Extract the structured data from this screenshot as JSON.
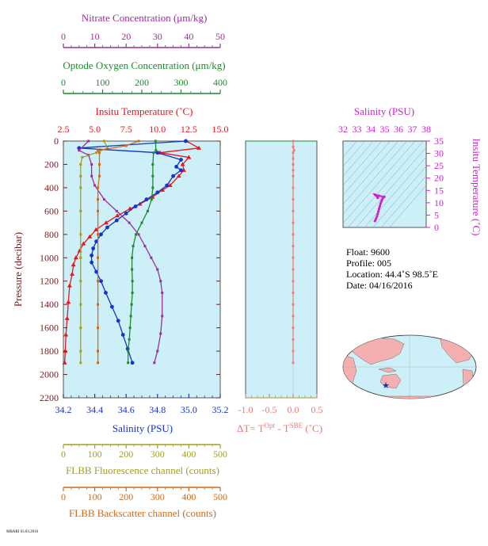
{
  "colors": {
    "nitrate": "#9b2f9b",
    "oxygen": "#1e8a2e",
    "temperature": "#e8151b",
    "salinity": "#1433c8",
    "fluorescence": "#a0a020",
    "backscatter": "#d06a18",
    "dt": "#f07878",
    "magenta": "#d020d0",
    "plot_bg": "#cdeff7"
  },
  "axes": {
    "nitrate": {
      "label": "Nitrate Concentration (μm/kg)",
      "ticks": [
        "0",
        "10",
        "20",
        "30",
        "40",
        "50"
      ]
    },
    "oxygen": {
      "label": "Optode Oxygen Concentration (μm/kg)",
      "ticks": [
        "0",
        "100",
        "200",
        "300",
        "400"
      ]
    },
    "temperature": {
      "label": "Insitu Temperature (˚C)",
      "ticks": [
        "2.5",
        "5.0",
        "7.5",
        "10.0",
        "12.5",
        "15.0"
      ]
    },
    "salinity": {
      "label": "Salinity (PSU)",
      "ticks": [
        "34.2",
        "34.4",
        "34.6",
        "34.8",
        "35.0",
        "35.2"
      ]
    },
    "pressure": {
      "label": "Pressure (decibar)",
      "ticks": [
        "0",
        "200",
        "400",
        "600",
        "800",
        "1000",
        "1200",
        "1400",
        "1600",
        "1800",
        "2000",
        "2200"
      ]
    },
    "fluorescence": {
      "label": "FLBB Fluorescence channel (counts)",
      "ticks": [
        "0",
        "100",
        "200",
        "300",
        "400",
        "500"
      ]
    },
    "backscatter": {
      "label": "FLBB Backscatter channel (counts)",
      "ticks": [
        "0",
        "100",
        "200",
        "300",
        "400",
        "500"
      ]
    },
    "dt": {
      "label_main": "ΔT= T",
      "sup1": "Opt",
      "label_mid": " - T",
      "sup2": "SBE",
      "label_end": " (˚C)",
      "ticks": [
        "-1.0",
        "-0.5",
        "0.0",
        "0.5"
      ]
    },
    "ts_salinity": {
      "label": "Salinity (PSU)",
      "ticks": [
        "32",
        "33",
        "34",
        "35",
        "36",
        "37",
        "38"
      ]
    },
    "ts_temperature": {
      "label": "Insitu Temperature (˚C)",
      "ticks": [
        "0",
        "5",
        "10",
        "15",
        "20",
        "25",
        "30",
        "35"
      ]
    }
  },
  "info": {
    "float": "Float:  9600",
    "profile": "Profile:  005",
    "location": "Location:  44.4˚S  98.5˚E",
    "date": "Date:  04/16/2016"
  },
  "footer": "MBARI 03.03.2016",
  "chart_data": [
    {
      "type": "line",
      "name": "profile-main",
      "y_label": "Pressure (decibar)",
      "ylim": [
        2200,
        0
      ],
      "series": [
        {
          "name": "Insitu Temperature",
          "unit": "˚C",
          "xlim": [
            2.5,
            15.0
          ],
          "points": [
            [
              12.3,
              0
            ],
            [
              13.3,
              60
            ],
            [
              10.2,
              100
            ],
            [
              12.5,
              140
            ],
            [
              12.0,
              200
            ],
            [
              12.1,
              250
            ],
            [
              11.7,
              300
            ],
            [
              11.0,
              380
            ],
            [
              10.4,
              420
            ],
            [
              9.6,
              480
            ],
            [
              8.6,
              540
            ],
            [
              7.8,
              580
            ],
            [
              6.8,
              640
            ],
            [
              5.9,
              700
            ],
            [
              5.1,
              760
            ],
            [
              4.6,
              820
            ],
            [
              4.1,
              880
            ],
            [
              3.8,
              940
            ],
            [
              3.5,
              1000
            ],
            [
              3.3,
              1060
            ],
            [
              3.2,
              1140
            ],
            [
              3.0,
              1240
            ],
            [
              2.9,
              1380
            ],
            [
              2.8,
              1520
            ],
            [
              2.7,
              1660
            ],
            [
              2.65,
              1800
            ],
            [
              2.6,
              1900
            ]
          ]
        },
        {
          "name": "Salinity",
          "unit": "PSU",
          "xlim": [
            34.2,
            35.2
          ],
          "points": [
            [
              34.98,
              0
            ],
            [
              34.3,
              60
            ],
            [
              34.8,
              100
            ],
            [
              34.95,
              160
            ],
            [
              34.92,
              220
            ],
            [
              34.95,
              250
            ],
            [
              34.9,
              300
            ],
            [
              34.86,
              380
            ],
            [
              34.8,
              440
            ],
            [
              34.73,
              500
            ],
            [
              34.66,
              560
            ],
            [
              34.6,
              620
            ],
            [
              34.54,
              680
            ],
            [
              34.48,
              740
            ],
            [
              34.44,
              800
            ],
            [
              34.41,
              860
            ],
            [
              34.39,
              920
            ],
            [
              34.38,
              980
            ],
            [
              34.38,
              1040
            ],
            [
              34.41,
              1120
            ],
            [
              34.44,
              1200
            ],
            [
              34.47,
              1300
            ],
            [
              34.51,
              1420
            ],
            [
              34.55,
              1540
            ],
            [
              34.58,
              1660
            ],
            [
              34.61,
              1780
            ],
            [
              34.64,
              1900
            ]
          ]
        },
        {
          "name": "Nitrate Concentration",
          "unit": "μm/kg",
          "xlim": [
            0,
            50
          ],
          "points": [
            [
              8,
              0
            ],
            [
              5,
              80
            ],
            [
              8,
              120
            ],
            [
              9,
              200
            ],
            [
              9,
              300
            ],
            [
              10,
              380
            ],
            [
              13,
              500
            ],
            [
              17,
              600
            ],
            [
              21,
              700
            ],
            [
              24,
              800
            ],
            [
              26,
              900
            ],
            [
              28,
              1000
            ],
            [
              30,
              1100
            ],
            [
              31,
              1200
            ],
            [
              31.5,
              1300
            ],
            [
              31.5,
              1500
            ],
            [
              31,
              1650
            ],
            [
              30,
              1800
            ],
            [
              29,
              1900
            ]
          ]
        },
        {
          "name": "Optode Oxygen Concentration",
          "unit": "μm/kg",
          "xlim": [
            0,
            400
          ],
          "points": [
            [
              235,
              0
            ],
            [
              236,
              80
            ],
            [
              230,
              100
            ],
            [
              228,
              200
            ],
            [
              228,
              300
            ],
            [
              228,
              400
            ],
            [
              225,
              500
            ],
            [
              215,
              600
            ],
            [
              200,
              700
            ],
            [
              185,
              800
            ],
            [
              178,
              900
            ],
            [
              175,
              1000
            ],
            [
              175,
              1100
            ],
            [
              176,
              1200
            ],
            [
              176,
              1300
            ],
            [
              174,
              1400
            ],
            [
              172,
              1500
            ],
            [
              170,
              1600
            ],
            [
              168,
              1700
            ],
            [
              165,
              1800
            ],
            [
              165,
              1900
            ]
          ]
        },
        {
          "name": "FLBB Fluorescence channel",
          "unit": "counts",
          "xlim": [
            0,
            500
          ],
          "points": [
            [
              130,
              0
            ],
            [
              140,
              60
            ],
            [
              105,
              100
            ],
            [
              60,
              140
            ],
            [
              55,
              200
            ],
            [
              55,
              300
            ],
            [
              55,
              400
            ],
            [
              55,
              600
            ],
            [
              55,
              800
            ],
            [
              55,
              1000
            ],
            [
              55,
              1200
            ],
            [
              55,
              1400
            ],
            [
              55,
              1600
            ],
            [
              55,
              1800
            ],
            [
              55,
              1900
            ]
          ]
        },
        {
          "name": "FLBB Backscatter channel",
          "unit": "counts",
          "xlim": [
            0,
            500
          ],
          "points": [
            [
              240,
              0
            ],
            [
              200,
              40
            ],
            [
              110,
              80
            ],
            [
              115,
              100
            ],
            [
              115,
              200
            ],
            [
              115,
              300
            ],
            [
              110,
              400
            ],
            [
              110,
              500
            ],
            [
              110,
              600
            ],
            [
              110,
              800
            ],
            [
              110,
              1000
            ],
            [
              110,
              1200
            ],
            [
              110,
              1400
            ],
            [
              110,
              1600
            ],
            [
              110,
              1800
            ],
            [
              110,
              1900
            ]
          ]
        }
      ]
    },
    {
      "type": "scatter",
      "name": "temperature-difference",
      "x_label": "ΔT= T(Opt) - T(SBE) (˚C)",
      "xlim": [
        -1.0,
        0.5
      ],
      "ylim": [
        2200,
        0
      ],
      "points": [
        [
          0.0,
          0
        ],
        [
          0.0,
          50
        ],
        [
          0.02,
          80
        ],
        [
          0.0,
          100
        ],
        [
          0.0,
          150
        ],
        [
          0.0,
          200
        ],
        [
          0.0,
          250
        ],
        [
          0.0,
          300
        ],
        [
          0.0,
          400
        ],
        [
          0.0,
          500
        ],
        [
          0.0,
          600
        ],
        [
          0.0,
          700
        ],
        [
          0.0,
          800
        ],
        [
          0.0,
          900
        ],
        [
          0.0,
          1000
        ],
        [
          0.0,
          1100
        ],
        [
          0.0,
          1200
        ],
        [
          0.0,
          1300
        ],
        [
          0.0,
          1400
        ],
        [
          0.0,
          1500
        ],
        [
          0.0,
          1600
        ],
        [
          0.0,
          1700
        ],
        [
          0.0,
          1800
        ],
        [
          0.0,
          1900
        ]
      ]
    },
    {
      "type": "scatter",
      "name": "ts-diagram",
      "x_label": "Salinity (PSU)",
      "y_label": "Insitu Temperature (˚C)",
      "xlim": [
        32,
        38
      ],
      "ylim": [
        0,
        35
      ],
      "points": [
        [
          34.3,
          2.6
        ],
        [
          34.38,
          3.5
        ],
        [
          34.45,
          4.5
        ],
        [
          34.5,
          5.5
        ],
        [
          34.55,
          6.5
        ],
        [
          34.6,
          7.5
        ],
        [
          34.65,
          8.5
        ],
        [
          34.7,
          9.5
        ],
        [
          34.75,
          10.3
        ],
        [
          34.8,
          11.0
        ],
        [
          34.85,
          11.7
        ],
        [
          34.9,
          12.1
        ],
        [
          34.95,
          12.4
        ],
        [
          34.98,
          12.4
        ],
        [
          34.6,
          12.8
        ],
        [
          34.3,
          13.3
        ],
        [
          34.5,
          12.0
        ]
      ]
    }
  ]
}
